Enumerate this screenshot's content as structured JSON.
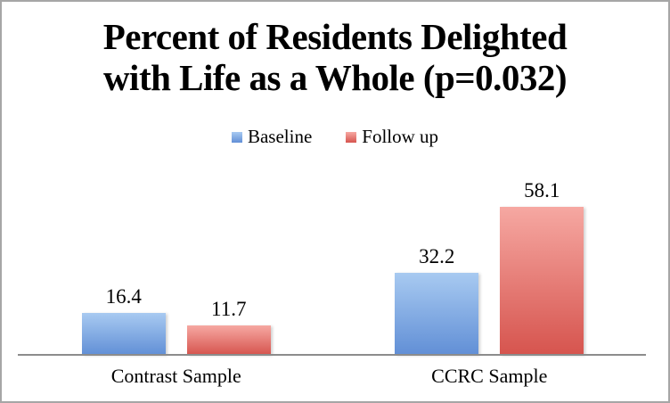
{
  "frame": {
    "border_color": "#a6a6a6",
    "background_color": "#ffffff",
    "text_color": "#000000"
  },
  "chart_data": {
    "type": "bar",
    "title": "Percent of Residents Delighted\nwith Life as a Whole (p=0.032)",
    "categories": [
      "Contrast Sample",
      "CCRC Sample"
    ],
    "series": [
      {
        "name": "Baseline",
        "values": [
          16.4,
          32.2
        ],
        "color_top": "#a8caf1",
        "color_bottom": "#618fd6"
      },
      {
        "name": "Follow up",
        "values": [
          11.7,
          58.1
        ],
        "color_top": "#f6a8a2",
        "color_bottom": "#d6544e"
      }
    ],
    "value_labels": [
      [
        "16.4",
        "32.2"
      ],
      [
        "11.7",
        "58.1"
      ]
    ],
    "ylim": [
      0,
      70
    ],
    "xlabel": "",
    "ylabel": "",
    "grid": false,
    "value_axis_visible": false,
    "legend_position": "top",
    "data_labels_shown": true,
    "axis_line_color": "#8c8c8c"
  }
}
